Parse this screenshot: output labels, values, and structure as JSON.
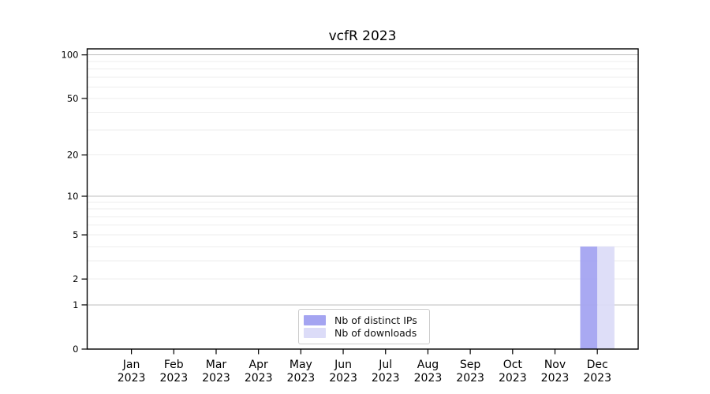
{
  "chart_data": {
    "type": "bar",
    "title": "vcfR 2023",
    "categories": [
      "Jan 2023",
      "Feb 2023",
      "Mar 2023",
      "Apr 2023",
      "May 2023",
      "Jun 2023",
      "Jul 2023",
      "Aug 2023",
      "Sep 2023",
      "Oct 2023",
      "Nov 2023",
      "Dec 2023"
    ],
    "series": [
      {
        "name": "Nb of distinct IPs",
        "color": "#a4a4f1",
        "values": [
          0,
          0,
          0,
          0,
          0,
          0,
          0,
          0,
          0,
          0,
          0,
          4
        ]
      },
      {
        "name": "Nb of downloads",
        "color": "#dcdcf8",
        "values": [
          0,
          0,
          0,
          0,
          0,
          0,
          0,
          0,
          0,
          0,
          0,
          4
        ]
      }
    ],
    "xlabel": "",
    "ylabel": "",
    "yticks": [
      0,
      1,
      2,
      5,
      10,
      20,
      50,
      100
    ],
    "minor_gridline_values": [
      2,
      3,
      4,
      5,
      6,
      7,
      8,
      9,
      20,
      30,
      40,
      50,
      60,
      70,
      80,
      90
    ],
    "major_gridline_values": [
      1,
      10,
      100
    ],
    "ylim": [
      0,
      110
    ],
    "yscale": "log10(value+1)",
    "grid": true,
    "legend_position": "bottom-center",
    "colors": {
      "major_grid": "#bdbdbd",
      "minor_grid": "#ededed",
      "axis": "#000000",
      "tick_label": "#000000",
      "background": "#ffffff"
    }
  }
}
